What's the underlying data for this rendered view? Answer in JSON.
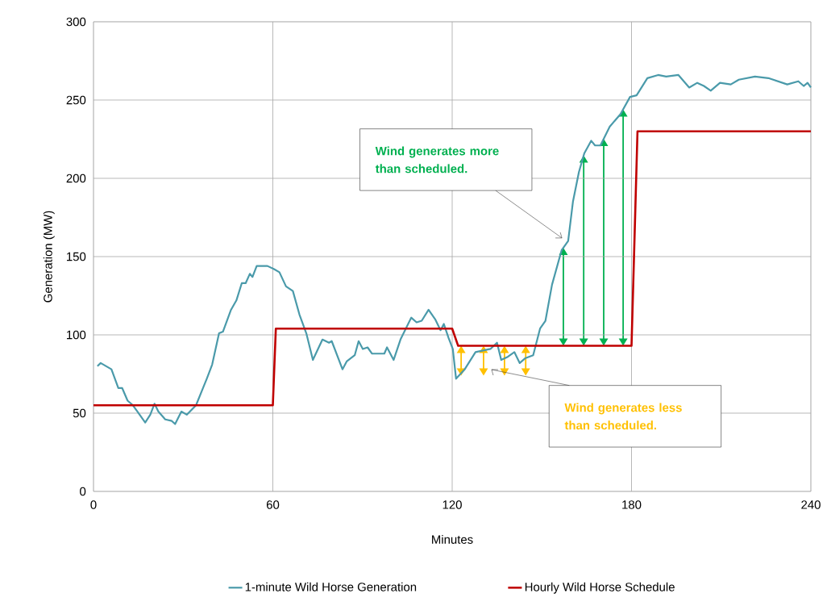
{
  "chart_data": {
    "type": "line",
    "xlabel": "Minutes",
    "ylabel": "Generation (MW)",
    "xlim": [
      0,
      240
    ],
    "xticks": [
      0,
      60,
      120,
      180,
      240
    ],
    "ylim": [
      0,
      300
    ],
    "yticks": [
      0,
      50,
      100,
      150,
      200,
      250,
      300
    ],
    "grid": true,
    "legend": "bottom",
    "marker": "none",
    "line_style": "solid",
    "series": [
      {
        "name": "1-minute Wild Horse Generation",
        "color": "#4a9aaa",
        "x": [
          1.3,
          2.4,
          6,
          8.3,
          9.6,
          11.4,
          13.2,
          17.3,
          19,
          20.4,
          21.7,
          24,
          26.2,
          27.3,
          29.4,
          31.2,
          34.3,
          37.9,
          39.7,
          42,
          43.3,
          46,
          47.8,
          49.6,
          50.9,
          52.3,
          53.2,
          54.6,
          58.2,
          60.4,
          62.2,
          64.4,
          66.7,
          68.9,
          71.2,
          73.4,
          76.6,
          78.8,
          79.7,
          83.3,
          84.7,
          87.4,
          88.7,
          90.1,
          91.7,
          93.2,
          97.3,
          98.2,
          100.4,
          102.7,
          106.3,
          108.1,
          109.8,
          112.1,
          114.3,
          116.1,
          117.2,
          118.8,
          120.2,
          121.3,
          124.2,
          127.8,
          132.8,
          135,
          136.4,
          138.6,
          140.8,
          142.6,
          144.4,
          147.1,
          149.4,
          151.2,
          153.4,
          156.6,
          158.8,
          160.4,
          162.4,
          164.2,
          166.5,
          167.8,
          169.6,
          172.7,
          176.3,
          179.5,
          181.7,
          185.3,
          188.9,
          191.6,
          195.7,
          199.3,
          202,
          204.2,
          206.5,
          209.6,
          213.2,
          215.9,
          221.3,
          225.8,
          232.1,
          235.8,
          237.6,
          238.9,
          240
        ],
        "values": [
          80,
          82,
          78,
          66,
          66,
          58,
          55,
          44,
          49,
          56,
          51,
          46,
          45,
          43,
          51,
          49,
          55,
          72,
          81,
          101,
          102,
          116,
          122,
          133,
          133,
          139,
          137,
          144,
          144,
          142,
          140,
          131,
          128,
          113,
          101,
          84,
          97,
          95,
          96,
          78,
          83,
          87,
          96,
          91,
          92,
          88,
          88,
          92,
          84,
          97,
          111,
          108,
          109,
          116,
          110,
          103,
          107,
          98,
          91,
          72,
          78,
          89,
          91,
          95,
          84,
          86,
          89,
          82,
          85,
          87,
          104,
          109,
          132,
          154,
          160,
          185,
          204,
          216,
          224,
          221,
          221,
          233,
          241,
          252,
          253,
          264,
          266,
          265,
          266,
          258,
          261,
          259,
          256,
          261,
          260,
          263,
          265,
          264,
          260,
          262,
          259,
          261,
          258
        ]
      },
      {
        "name": "Hourly Wild Horse Schedule",
        "color": "#c00000",
        "x": [
          0,
          60,
          61,
          120,
          122,
          180,
          182,
          240
        ],
        "values": [
          55,
          55,
          104,
          104,
          93,
          93,
          230,
          230
        ]
      }
    ],
    "annotations": [
      "Wind generates more than scheduled.",
      "Wind generates less than scheduled."
    ]
  }
}
